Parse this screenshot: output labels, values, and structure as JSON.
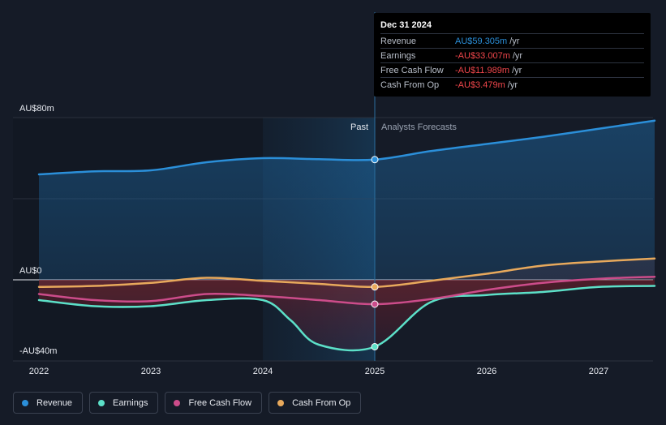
{
  "tooltip": {
    "date": "Dec 31 2024",
    "rows": [
      {
        "label": "Revenue",
        "value": "AU$59.305m",
        "unit": "/yr",
        "color": "#2b8fd9"
      },
      {
        "label": "Earnings",
        "value": "-AU$33.007m",
        "unit": "/yr",
        "color": "#f0464b"
      },
      {
        "label": "Free Cash Flow",
        "value": "-AU$11.989m",
        "unit": "/yr",
        "color": "#f0464b"
      },
      {
        "label": "Cash From Op",
        "value": "-AU$3.479m",
        "unit": "/yr",
        "color": "#f0464b"
      }
    ]
  },
  "legend": [
    {
      "label": "Revenue",
      "color": "#2b8fd9"
    },
    {
      "label": "Earnings",
      "color": "#5ce0c8"
    },
    {
      "label": "Free Cash Flow",
      "color": "#cc4c8a"
    },
    {
      "label": "Cash From Op",
      "color": "#e8a95c"
    }
  ],
  "chart_data": {
    "type": "line",
    "ylim": [
      -40,
      80
    ],
    "xlim": [
      2021.8,
      2027.5
    ],
    "y_tick_labels": [
      {
        "value": 80,
        "label": "AU$80m"
      },
      {
        "value": 0,
        "label": "AU$0"
      },
      {
        "value": -40,
        "label": "-AU$40m"
      }
    ],
    "x_ticks": [
      {
        "value": 2022,
        "label": "2022"
      },
      {
        "value": 2023,
        "label": "2023"
      },
      {
        "value": 2024,
        "label": "2024"
      },
      {
        "value": 2025,
        "label": "2025"
      },
      {
        "value": 2026,
        "label": "2026"
      },
      {
        "value": 2027,
        "label": "2027"
      }
    ],
    "periods": {
      "past_label": "Past",
      "forecast_label": "Analysts Forecasts",
      "divider_x": 2025,
      "highlight_start": 2024
    },
    "grid": true,
    "series": [
      {
        "name": "Revenue",
        "color": "#2b8fd9",
        "x": [
          2022,
          2022.5,
          2023,
          2023.5,
          2024,
          2024.5,
          2025,
          2025.5,
          2026,
          2026.5,
          2027,
          2027.5
        ],
        "y": [
          52,
          53.5,
          54,
          58,
          60,
          59.5,
          59.3,
          63.5,
          67,
          70.5,
          74.5,
          78.5
        ]
      },
      {
        "name": "Earnings",
        "color": "#5ce0c8",
        "x": [
          2022,
          2022.5,
          2023,
          2023.5,
          2024,
          2024.25,
          2024.5,
          2025,
          2025.5,
          2026,
          2026.5,
          2027,
          2027.5
        ],
        "y": [
          -10,
          -13,
          -13,
          -10,
          -10,
          -20,
          -32,
          -33,
          -11,
          -7.5,
          -6,
          -3.5,
          -3
        ]
      },
      {
        "name": "Free Cash Flow",
        "color": "#cc4c8a",
        "x": [
          2022,
          2022.5,
          2023,
          2023.5,
          2024,
          2024.5,
          2025,
          2025.5,
          2026,
          2026.5,
          2027,
          2027.5
        ],
        "y": [
          -7,
          -10,
          -10.5,
          -7,
          -8,
          -10,
          -12,
          -9.5,
          -5,
          -1.5,
          0.5,
          1.5
        ]
      },
      {
        "name": "Cash From Op",
        "color": "#e8a95c",
        "x": [
          2022,
          2022.5,
          2023,
          2023.5,
          2024,
          2024.5,
          2025,
          2025.5,
          2026,
          2026.5,
          2027,
          2027.5
        ],
        "y": [
          -3.5,
          -3,
          -1.5,
          1,
          -0.5,
          -2,
          -3.5,
          -0.5,
          3,
          7,
          9,
          10.5
        ]
      }
    ],
    "highlight_points_x": 2025
  }
}
